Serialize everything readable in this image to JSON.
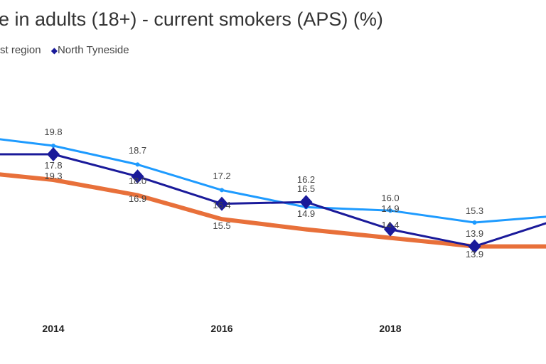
{
  "chart_data": {
    "type": "line",
    "title": "e in adults (18+) - current smokers (APS) (%)",
    "legend": {
      "entries": [
        "st region",
        "North Tyneside"
      ],
      "placement": "top-left"
    },
    "x": [
      2013,
      2014,
      2015,
      2016,
      2017,
      2018,
      2019,
      2020
    ],
    "tick_labels": [
      "2014",
      "2016",
      "2018"
    ],
    "grid": false,
    "series": [
      {
        "color": "#1e9bff",
        "values": [
          20.4,
          19.8,
          18.7,
          17.2,
          16.2,
          16.0,
          15.3,
          15.7
        ],
        "labels": [
          null,
          "19.8",
          "18.7",
          "17.2",
          "16.2",
          "16.0",
          "15.3",
          null
        ]
      },
      {
        "name": "North Tyneside",
        "color": "#1a1a9a",
        "values": [
          19.3,
          19.3,
          18.0,
          16.4,
          16.5,
          14.9,
          13.9,
          15.5
        ],
        "labels": [
          null,
          "19.3",
          "18.0",
          "16.4",
          "16.5",
          "14.9",
          "13.9",
          null
        ]
      },
      {
        "color": "#e8703a",
        "values": [
          18.3,
          17.8,
          16.9,
          15.5,
          14.9,
          14.4,
          13.9,
          13.9
        ],
        "labels": [
          null,
          "17.8",
          "16.9",
          "15.5",
          "14.9",
          "14.4",
          "13.9",
          null
        ]
      }
    ]
  }
}
